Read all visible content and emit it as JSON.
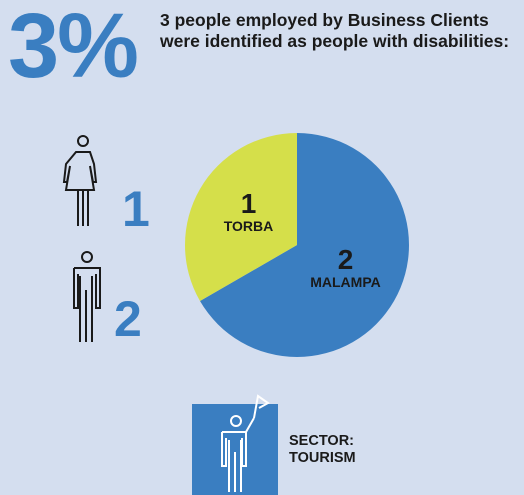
{
  "headline": {
    "percent": "3%",
    "text": "3 people employed by Business Clients were identified as people with disabilities:"
  },
  "gender_counts": [
    1,
    2
  ],
  "chart_data": {
    "type": "pie",
    "categories": [
      "TORBA",
      "MALAMPA"
    ],
    "values": [
      1,
      2
    ],
    "colors": [
      "#d5df4a",
      "#3a7ec1"
    ]
  },
  "sector": {
    "label": "SECTOR:",
    "value": "TOURISM"
  }
}
